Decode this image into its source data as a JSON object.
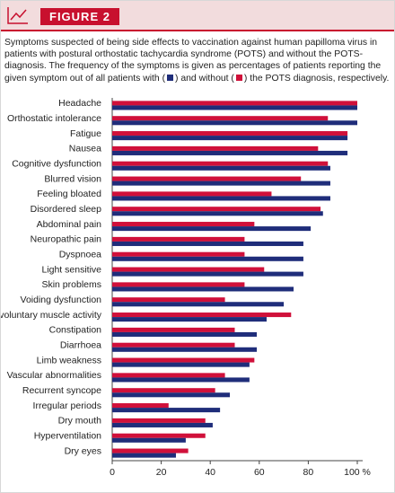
{
  "header": {
    "title": "FIGURE 2"
  },
  "caption": [
    "Symptoms suspected of being side effects to vaccination against human papilloma virus in patients with postural orthostatic tachycardia syndrome (POTS) and without the POTS-diagnosis. The frequency of the symptoms is given as percentages of patients reporting the given symptom out of all patients with (",
    ") and without (",
    ") the POTS diagnosis, respectively."
  ],
  "chart_data": {
    "type": "bar",
    "orientation": "horizontal",
    "categories": [
      "Headache",
      "Orthostatic intolerance",
      "Fatigue",
      "Nausea",
      "Cognitive dysfunction",
      "Blurred vision",
      "Feeling bloated",
      "Disordered sleep",
      "Abdominal pain",
      "Neuropathic pain",
      "Dyspnoea",
      "Light sensitive",
      "Skin problems",
      "Voiding dysfunction",
      "Involuntary muscle activity",
      "Constipation",
      "Diarrhoea",
      "Limb weakness",
      "Vascular abnormalities",
      "Recurrent syncope",
      "Irregular periods",
      "Dry mouth",
      "Hyperventilation",
      "Dry eyes"
    ],
    "series": [
      {
        "color": "#d0103a",
        "values": [
          100,
          88,
          96,
          84,
          88,
          77,
          65,
          85,
          58,
          54,
          54,
          62,
          54,
          46,
          73,
          50,
          50,
          58,
          46,
          42,
          23,
          38,
          38,
          31
        ]
      },
      {
        "color": "#1f2d7a",
        "values": [
          100,
          100,
          96,
          96,
          89,
          89,
          89,
          86,
          81,
          78,
          78,
          78,
          74,
          70,
          63,
          59,
          59,
          56,
          56,
          48,
          44,
          41,
          30,
          26
        ]
      }
    ],
    "xlim": [
      0,
      100
    ],
    "xticks": [
      0,
      20,
      40,
      60,
      80,
      {
        "value": 100,
        "label": "100 %"
      }
    ]
  }
}
